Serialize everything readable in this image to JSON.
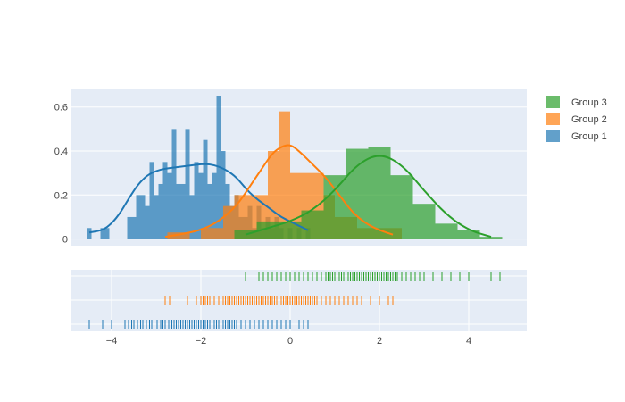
{
  "chart_data": {
    "type": "histogram",
    "title": "",
    "x_range": [
      -4.9,
      5.3
    ],
    "y_range": [
      -0.03,
      0.68
    ],
    "x_ticks": [
      -4,
      -2,
      0,
      2,
      4
    ],
    "x_tick_labels": [
      "−4",
      "−2",
      "0",
      "2",
      "4"
    ],
    "y_ticks": [
      0,
      0.2,
      0.4,
      0.6
    ],
    "y_tick_labels": [
      "0",
      "0.2",
      "0.4",
      "0.6"
    ],
    "grid": true,
    "legend_position": "top-right",
    "series": [
      {
        "name": "Group 1",
        "color": "#1f77b4",
        "bin_width": 0.1,
        "hist": [
          [
            -4.5,
            0.05
          ],
          [
            -4.2,
            0.05
          ],
          [
            -4.1,
            0.05
          ],
          [
            -3.6,
            0.1
          ],
          [
            -3.5,
            0.1
          ],
          [
            -3.4,
            0.2
          ],
          [
            -3.3,
            0.2
          ],
          [
            -3.2,
            0.15
          ],
          [
            -3.1,
            0.35
          ],
          [
            -3.0,
            0.2
          ],
          [
            -2.9,
            0.25
          ],
          [
            -2.8,
            0.35
          ],
          [
            -2.7,
            0.3
          ],
          [
            -2.6,
            0.5
          ],
          [
            -2.5,
            0.25
          ],
          [
            -2.4,
            0.25
          ],
          [
            -2.3,
            0.5
          ],
          [
            -2.2,
            0.2
          ],
          [
            -2.1,
            0.35
          ],
          [
            -2.0,
            0.3
          ],
          [
            -1.9,
            0.45
          ],
          [
            -1.8,
            0.25
          ],
          [
            -1.7,
            0.3
          ],
          [
            -1.6,
            0.65
          ],
          [
            -1.5,
            0.4
          ],
          [
            -1.4,
            0.25
          ],
          [
            -1.3,
            0.15
          ],
          [
            -1.2,
            0.2
          ],
          [
            -1.1,
            0.1
          ],
          [
            -1.0,
            0.1
          ],
          [
            -0.9,
            0.15
          ],
          [
            -0.8,
            0.05
          ],
          [
            -0.7,
            0.15
          ],
          [
            -0.6,
            0.05
          ],
          [
            -0.5,
            0.1
          ],
          [
            -0.4,
            0.05
          ],
          [
            -0.3,
            0.1
          ],
          [
            -0.2,
            0.05
          ],
          [
            0.0,
            0.05
          ],
          [
            0.2,
            0.05
          ],
          [
            0.4,
            0.05
          ]
        ],
        "kde": [
          [
            -4.5,
            0.03
          ],
          [
            -4.2,
            0.04
          ],
          [
            -4.0,
            0.07
          ],
          [
            -3.8,
            0.12
          ],
          [
            -3.6,
            0.19
          ],
          [
            -3.4,
            0.25
          ],
          [
            -3.2,
            0.29
          ],
          [
            -3.0,
            0.31
          ],
          [
            -2.8,
            0.32
          ],
          [
            -2.6,
            0.325
          ],
          [
            -2.4,
            0.33
          ],
          [
            -2.2,
            0.335
          ],
          [
            -2.0,
            0.34
          ],
          [
            -1.8,
            0.34
          ],
          [
            -1.6,
            0.33
          ],
          [
            -1.4,
            0.31
          ],
          [
            -1.2,
            0.28
          ],
          [
            -1.0,
            0.23
          ],
          [
            -0.8,
            0.19
          ],
          [
            -0.6,
            0.16
          ],
          [
            -0.4,
            0.13
          ],
          [
            -0.2,
            0.1
          ],
          [
            0.0,
            0.08
          ],
          [
            0.2,
            0.06
          ],
          [
            0.4,
            0.04
          ]
        ],
        "rug": [
          -4.5,
          -4.2,
          -4.0,
          -3.7,
          -3.62,
          -3.55,
          -3.5,
          -3.42,
          -3.35,
          -3.3,
          -3.22,
          -3.15,
          -3.1,
          -3.05,
          -2.98,
          -2.9,
          -2.85,
          -2.8,
          -2.72,
          -2.65,
          -2.6,
          -2.55,
          -2.5,
          -2.45,
          -2.4,
          -2.35,
          -2.3,
          -2.25,
          -2.2,
          -2.15,
          -2.1,
          -2.05,
          -2.0,
          -1.95,
          -1.9,
          -1.85,
          -1.8,
          -1.75,
          -1.7,
          -1.65,
          -1.6,
          -1.55,
          -1.5,
          -1.45,
          -1.4,
          -1.35,
          -1.3,
          -1.25,
          -1.2,
          -1.1,
          -1.0,
          -0.9,
          -0.8,
          -0.7,
          -0.6,
          -0.5,
          -0.4,
          -0.3,
          -0.2,
          -0.1,
          0.0,
          0.2,
          0.3,
          0.4
        ]
      },
      {
        "name": "Group 2",
        "color": "#ff7f0e",
        "bin_width": 0.25,
        "hist": [
          [
            -2.625,
            0.03
          ],
          [
            -2.375,
            0.03
          ],
          [
            -1.875,
            0.05
          ],
          [
            -1.625,
            0.05
          ],
          [
            -1.375,
            0.15
          ],
          [
            -1.125,
            0.2
          ],
          [
            -0.875,
            0.2
          ],
          [
            -0.625,
            0.2
          ],
          [
            -0.375,
            0.4
          ],
          [
            -0.125,
            0.58
          ],
          [
            0.125,
            0.3
          ],
          [
            0.375,
            0.3
          ],
          [
            0.625,
            0.3
          ],
          [
            0.875,
            0.2
          ],
          [
            1.125,
            0.1
          ],
          [
            1.375,
            0.1
          ],
          [
            1.625,
            0.05
          ],
          [
            1.875,
            0.05
          ],
          [
            2.125,
            0.05
          ],
          [
            2.375,
            0.05
          ]
        ],
        "kde": [
          [
            -2.8,
            0.01
          ],
          [
            -2.5,
            0.02
          ],
          [
            -2.0,
            0.04
          ],
          [
            -1.6,
            0.08
          ],
          [
            -1.2,
            0.15
          ],
          [
            -0.9,
            0.24
          ],
          [
            -0.6,
            0.33
          ],
          [
            -0.4,
            0.39
          ],
          [
            -0.2,
            0.42
          ],
          [
            0.0,
            0.43
          ],
          [
            0.2,
            0.4
          ],
          [
            0.5,
            0.34
          ],
          [
            0.8,
            0.28
          ],
          [
            1.1,
            0.2
          ],
          [
            1.4,
            0.12
          ],
          [
            1.7,
            0.07
          ],
          [
            2.0,
            0.04
          ],
          [
            2.3,
            0.02
          ]
        ],
        "rug": [
          -2.8,
          -2.7,
          -2.3,
          -2.1,
          -2.0,
          -1.95,
          -1.9,
          -1.85,
          -1.8,
          -1.7,
          -1.6,
          -1.55,
          -1.5,
          -1.45,
          -1.4,
          -1.35,
          -1.3,
          -1.25,
          -1.2,
          -1.15,
          -1.1,
          -1.05,
          -1.0,
          -0.95,
          -0.9,
          -0.85,
          -0.8,
          -0.75,
          -0.7,
          -0.65,
          -0.6,
          -0.55,
          -0.5,
          -0.45,
          -0.4,
          -0.35,
          -0.3,
          -0.25,
          -0.2,
          -0.15,
          -0.1,
          -0.05,
          0.0,
          0.05,
          0.1,
          0.15,
          0.2,
          0.25,
          0.3,
          0.35,
          0.4,
          0.45,
          0.5,
          0.55,
          0.6,
          0.7,
          0.8,
          0.9,
          1.0,
          1.1,
          1.2,
          1.3,
          1.4,
          1.5,
          1.6,
          1.8,
          2.0,
          2.2,
          2.3
        ]
      },
      {
        "name": "Group 3",
        "color": "#2ca02c",
        "bin_width": 0.5,
        "hist": [
          [
            -1.0,
            0.04
          ],
          [
            -0.5,
            0.08
          ],
          [
            0.0,
            0.08
          ],
          [
            0.5,
            0.13
          ],
          [
            1.0,
            0.29
          ],
          [
            1.5,
            0.41
          ],
          [
            2.0,
            0.42
          ],
          [
            2.5,
            0.29
          ],
          [
            3.0,
            0.16
          ],
          [
            3.5,
            0.07
          ],
          [
            4.0,
            0.04
          ],
          [
            4.5,
            0.01
          ]
        ],
        "kde": [
          [
            -1.0,
            0.02
          ],
          [
            -0.5,
            0.05
          ],
          [
            0.0,
            0.08
          ],
          [
            0.5,
            0.13
          ],
          [
            1.0,
            0.22
          ],
          [
            1.5,
            0.34
          ],
          [
            2.0,
            0.39
          ],
          [
            2.5,
            0.34
          ],
          [
            3.0,
            0.22
          ],
          [
            3.5,
            0.11
          ],
          [
            4.0,
            0.04
          ],
          [
            4.5,
            0.01
          ]
        ],
        "rug": [
          -1.0,
          -0.7,
          -0.6,
          -0.5,
          -0.4,
          -0.3,
          -0.2,
          -0.1,
          0.0,
          0.1,
          0.2,
          0.3,
          0.4,
          0.5,
          0.6,
          0.7,
          0.8,
          0.85,
          0.9,
          0.95,
          1.0,
          1.05,
          1.1,
          1.15,
          1.2,
          1.25,
          1.3,
          1.35,
          1.4,
          1.45,
          1.5,
          1.55,
          1.6,
          1.65,
          1.7,
          1.75,
          1.8,
          1.85,
          1.9,
          1.95,
          2.0,
          2.05,
          2.1,
          2.15,
          2.2,
          2.25,
          2.3,
          2.35,
          2.4,
          2.5,
          2.6,
          2.7,
          2.8,
          2.9,
          3.0,
          3.2,
          3.4,
          3.6,
          3.8,
          4.0,
          4.5,
          4.7
        ]
      }
    ],
    "legend_order": [
      "Group 3",
      "Group 2",
      "Group 1"
    ]
  }
}
